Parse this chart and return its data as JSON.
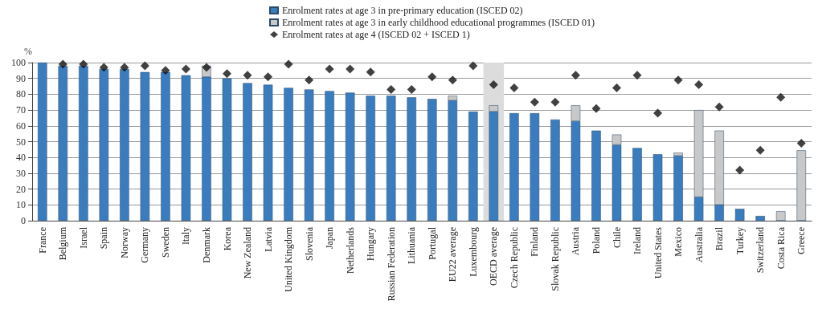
{
  "chart_data": {
    "type": "bar",
    "stacked": true,
    "ylabel": "%",
    "categories": [
      "France",
      "Belgium",
      "Israel",
      "Spain",
      "Norway",
      "Germany",
      "Sweden",
      "Italy",
      "Denmark",
      "Korea",
      "New Zealand",
      "Latvia",
      "United Kingdom",
      "Slovenia",
      "Japan",
      "Netherlands",
      "Hungary",
      "Russian Federation",
      "Lithuania",
      "Portugal",
      "EU22 average",
      "Luxembourg",
      "OECD average",
      "Czech Republic",
      "Finland",
      "Slovak Republic",
      "Austria",
      "Poland",
      "Chile",
      "Ireland",
      "United States",
      "Mexico",
      "Australia",
      "Brazil",
      "Turkey",
      "Switzerland",
      "Costa Rica",
      "Greece"
    ],
    "series": [
      {
        "name": "Enrolment rates at age 3 in pre-primary education (ISCED 02)",
        "color": "#3a7dbf",
        "values": [
          100,
          98,
          98,
          96,
          96,
          94,
          94,
          92,
          91,
          90,
          87,
          86,
          84,
          83,
          82,
          81,
          79,
          79,
          78,
          77,
          76,
          69,
          69,
          68,
          68,
          64,
          63,
          57,
          48,
          46,
          42,
          41,
          15,
          10,
          7.5,
          3,
          0,
          0
        ]
      },
      {
        "name": "Enrolment rates at age 3 in early childhood educational programmes (ISCED 01)",
        "color": "#c8c8c8",
        "values": [
          null,
          null,
          null,
          null,
          null,
          null,
          null,
          null,
          7,
          null,
          null,
          null,
          null,
          null,
          null,
          null,
          null,
          null,
          null,
          null,
          3,
          null,
          4,
          null,
          null,
          null,
          10,
          null,
          6.5,
          null,
          null,
          2,
          55,
          47,
          null,
          null,
          6,
          44.5
        ]
      },
      {
        "name": "Enrolment rates at age 4 (ISCED 02 + ISCED 1)",
        "type": "scatter",
        "color": "#111111",
        "values": [
          null,
          99,
          99,
          97,
          97,
          98,
          95,
          96,
          97,
          93,
          92,
          91,
          99,
          89,
          96,
          96,
          94,
          83,
          83,
          91,
          89,
          98,
          86,
          84,
          75,
          75,
          92,
          71,
          84,
          92,
          68,
          89,
          86,
          72,
          32,
          44.5,
          78,
          49
        ]
      }
    ],
    "ylim": [
      0,
      100
    ],
    "yticks": [
      0,
      10,
      20,
      30,
      40,
      50,
      60,
      70,
      80,
      90,
      100
    ],
    "grid": "y",
    "legend": "top",
    "marker": "diamond",
    "bands": [
      {
        "axis": "x",
        "from": "OECD average",
        "to": "OECD average",
        "color": "#dcdcdc"
      }
    ]
  }
}
